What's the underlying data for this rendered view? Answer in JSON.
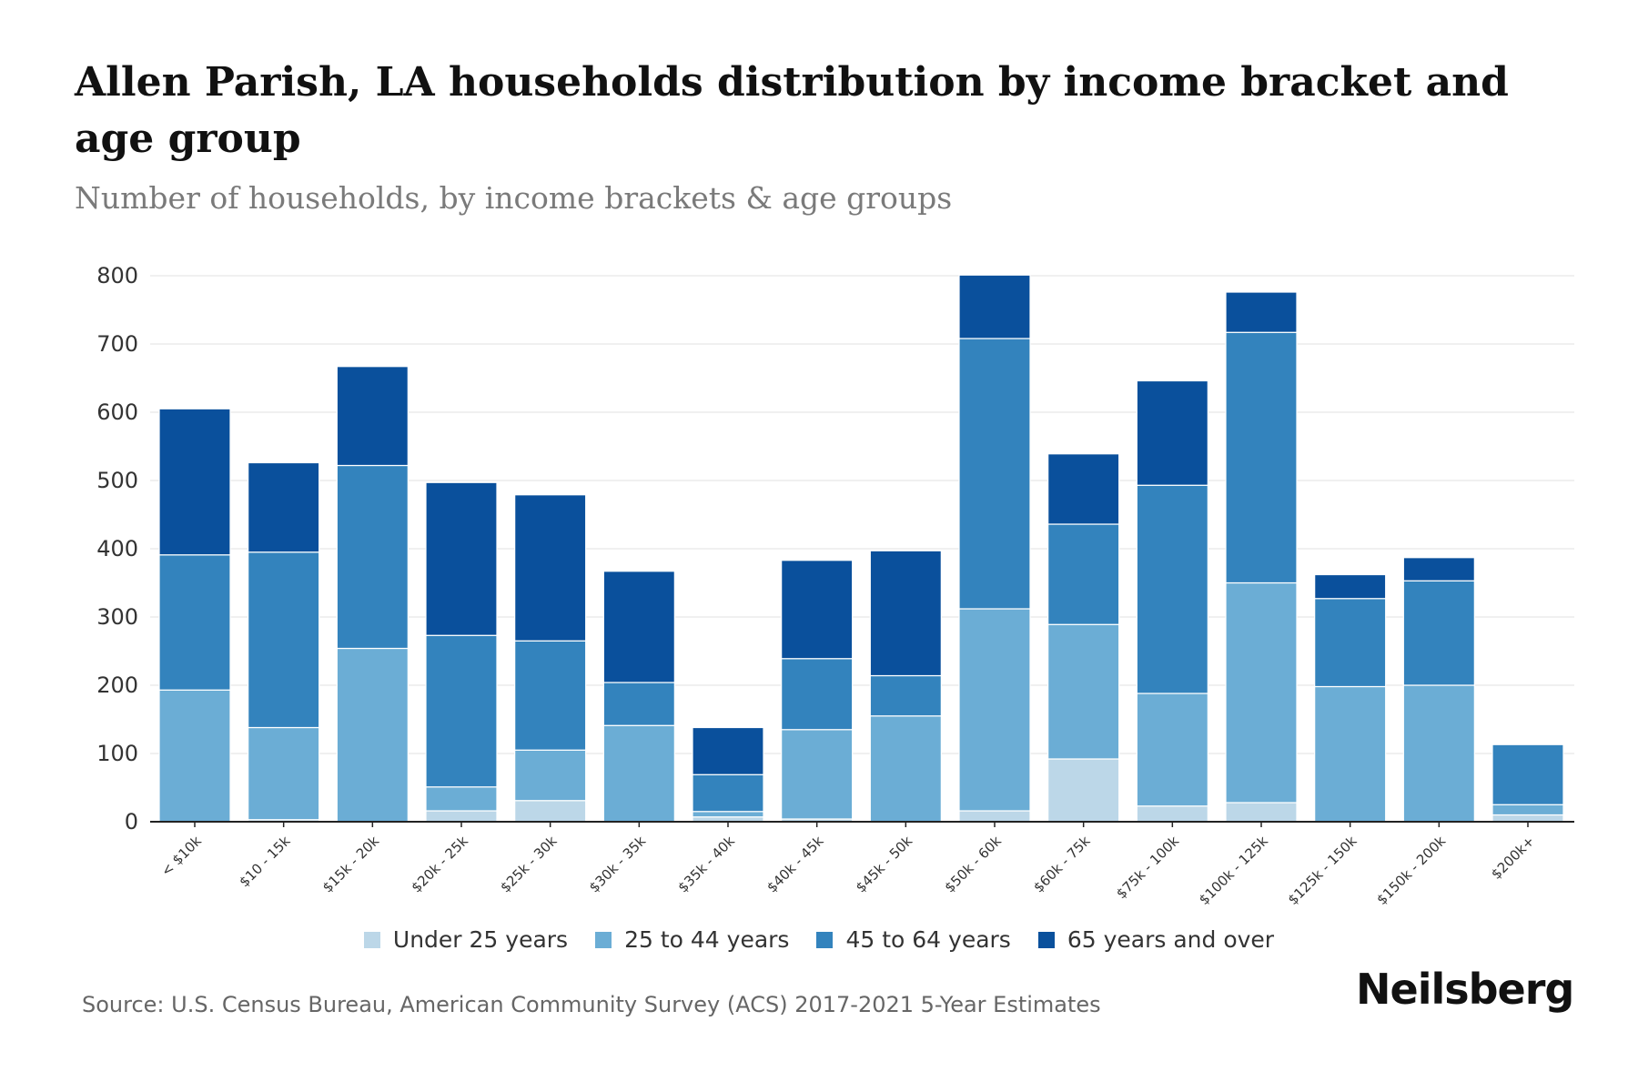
{
  "header": {
    "title": "Allen Parish, LA households distribution by income bracket and age group",
    "subtitle": "Number of households, by income brackets & age groups"
  },
  "footer": {
    "source": "Source: U.S. Census Bureau, American Community Survey (ACS) 2017-2021 5-Year Estimates",
    "brand": "Neilsberg"
  },
  "chart_data": {
    "type": "bar",
    "stacked": true,
    "title": "Allen Parish, LA households distribution by income bracket and age group",
    "subtitle": "Number of households, by income brackets & age groups",
    "xlabel": "",
    "ylabel": "",
    "ylim": [
      0,
      800
    ],
    "yticks": [
      0,
      100,
      200,
      300,
      400,
      500,
      600,
      700,
      800
    ],
    "grid": true,
    "legend_position": "bottom",
    "categories": [
      "< $10k",
      "$10 - 15k",
      "$15k - 20k",
      "$20k - 25k",
      "$25k - 30k",
      "$30k - 35k",
      "$35k - 40k",
      "$40k - 45k",
      "$45k - 50k",
      "$50k - 60k",
      "$60k - 75k",
      "$75k - 100k",
      "$100k - 125k",
      "$125k - 150k",
      "$150k - 200k",
      "$200k+"
    ],
    "series": [
      {
        "name": "Under 25 years",
        "color": "#bcd7e8",
        "values": [
          0,
          3,
          0,
          16,
          31,
          0,
          7,
          4,
          0,
          16,
          92,
          23,
          28,
          0,
          0,
          10
        ]
      },
      {
        "name": "25 to 44 years",
        "color": "#6badd5",
        "values": [
          193,
          135,
          254,
          35,
          74,
          141,
          8,
          131,
          155,
          296,
          197,
          165,
          322,
          198,
          200,
          15
        ]
      },
      {
        "name": "45 to 64 years",
        "color": "#3383bd",
        "values": [
          198,
          257,
          268,
          222,
          160,
          63,
          54,
          104,
          59,
          396,
          147,
          305,
          367,
          129,
          153,
          88
        ]
      },
      {
        "name": "65 years and over",
        "color": "#0a509c",
        "values": [
          214,
          131,
          145,
          224,
          214,
          163,
          69,
          144,
          183,
          93,
          103,
          153,
          59,
          35,
          34,
          0
        ]
      }
    ]
  }
}
